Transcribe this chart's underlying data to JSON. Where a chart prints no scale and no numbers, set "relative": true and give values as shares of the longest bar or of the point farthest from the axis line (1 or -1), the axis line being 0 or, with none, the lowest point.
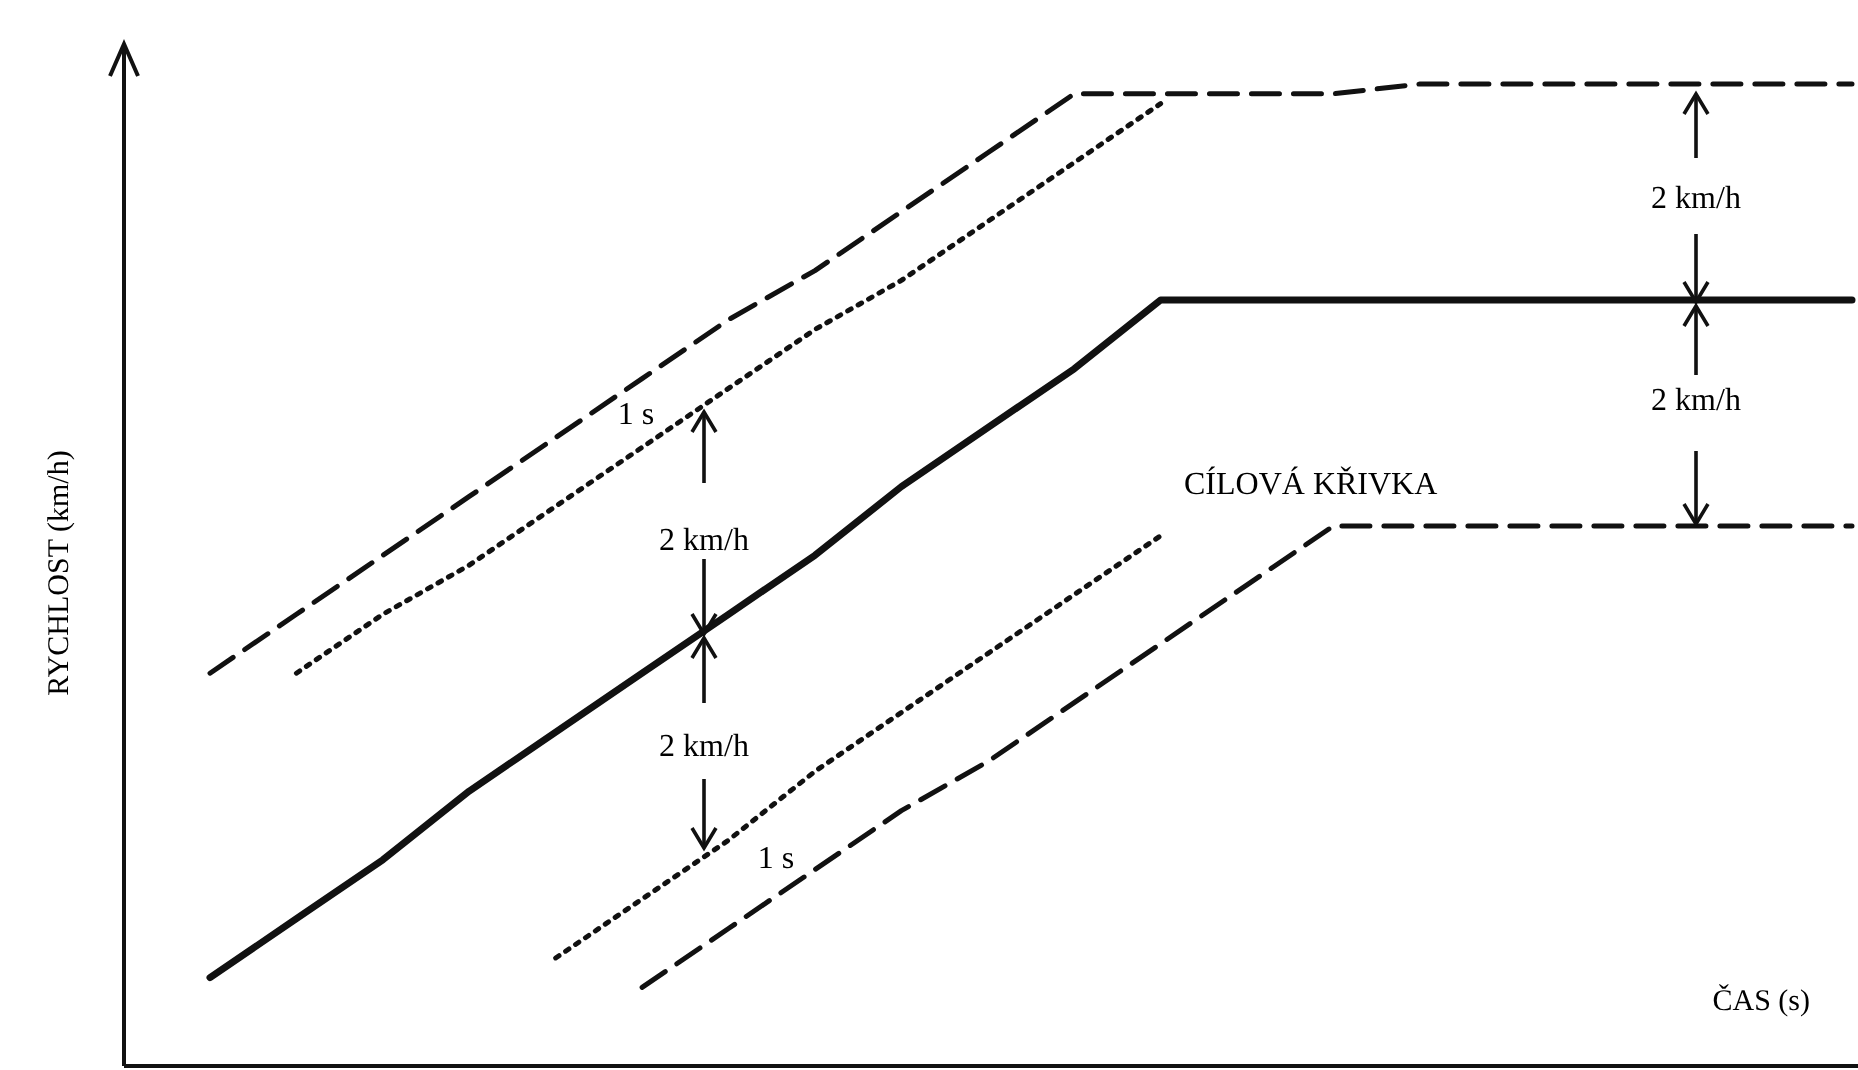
{
  "chart_data": {
    "type": "line",
    "relative": true,
    "xlabel": "ČAS (s)",
    "ylabel": "RYCHLOST (km/h)",
    "categories": [
      null,
      null,
      null,
      null,
      null,
      null,
      null,
      null,
      null,
      null,
      null,
      null,
      null,
      null,
      null,
      null,
      null,
      null,
      null,
      null
    ],
    "grid": false,
    "marker": "none",
    "series": [
      {
        "color": "#111111",
        "line_style": "dashed",
        "values": [
          0.4,
          0.46,
          0.52,
          0.58,
          0.64,
          0.7,
          0.76,
          0.81,
          0.87,
          0.93,
          0.99,
          0.99,
          0.99,
          0.99,
          1,
          1,
          1,
          1,
          1,
          1
        ]
      },
      {
        "color": "#111111",
        "line_style": "dotted",
        "values": [
          null,
          0.4,
          0.46,
          0.51,
          0.57,
          0.63,
          0.69,
          0.75,
          0.8,
          0.86,
          0.92,
          0.98,
          null,
          null,
          null,
          null,
          null,
          null,
          null,
          null
        ]
      },
      {
        "color": "#111111",
        "line_style": "solid",
        "values": [
          0.09,
          0.15,
          0.21,
          0.28,
          0.34,
          0.4,
          0.46,
          0.52,
          0.59,
          0.65,
          0.71,
          0.78,
          0.78,
          0.78,
          0.78,
          0.78,
          0.78,
          0.78,
          0.78,
          0.78
        ]
      },
      {
        "color": "#111111",
        "line_style": "dotted",
        "values": [
          null,
          null,
          null,
          null,
          0.11,
          0.17,
          0.23,
          0.3,
          0.36,
          0.42,
          0.48,
          0.54,
          null,
          null,
          null,
          null,
          null,
          null,
          null,
          null
        ]
      },
      {
        "color": "#111111",
        "line_style": "dashed",
        "values": [
          null,
          null,
          null,
          null,
          null,
          0.08,
          0.14,
          0.2,
          0.26,
          0.31,
          0.37,
          0.43,
          0.49,
          0.55,
          0.55,
          0.55,
          0.55,
          0.55,
          0.55,
          0.55
        ]
      }
    ],
    "annotations": [
      "CÍLOVÁ KŘIVKA",
      "2 km/h",
      "2 km/h",
      "2 km/h",
      "2 km/h",
      "1 s",
      "1 s"
    ]
  }
}
